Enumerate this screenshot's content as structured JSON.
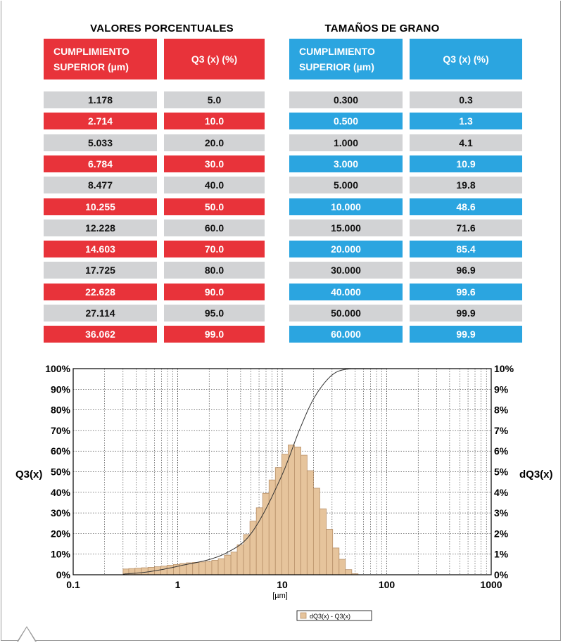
{
  "colors": {
    "red": "#e8333a",
    "blue": "#2ba5e0",
    "grey": "#d2d3d5",
    "bar_fill": "#e6c49c",
    "bar_stroke": "#b8916a"
  },
  "left_table": {
    "title": "VALORES PORCENTUALES",
    "col1_header": "CUMPLIMIENTO SUPERIOR (µm)",
    "col2_header": "Q3 (x) (%)",
    "rows": [
      {
        "a": "1.178",
        "b": "5.0"
      },
      {
        "a": "2.714",
        "b": "10.0"
      },
      {
        "a": "5.033",
        "b": "20.0"
      },
      {
        "a": "6.784",
        "b": "30.0"
      },
      {
        "a": "8.477",
        "b": "40.0"
      },
      {
        "a": "10.255",
        "b": "50.0"
      },
      {
        "a": "12.228",
        "b": "60.0"
      },
      {
        "a": "14.603",
        "b": "70.0"
      },
      {
        "a": "17.725",
        "b": "80.0"
      },
      {
        "a": "22.628",
        "b": "90.0"
      },
      {
        "a": "27.114",
        "b": "95.0"
      },
      {
        "a": "36.062",
        "b": "99.0"
      }
    ]
  },
  "right_table": {
    "title": "TAMAÑOS DE GRANO",
    "col1_header": "CUMPLIMIENTO SUPERIOR (µm)",
    "col2_header": "Q3 (x) (%)",
    "rows": [
      {
        "a": "0.300",
        "b": "0.3"
      },
      {
        "a": "0.500",
        "b": "1.3"
      },
      {
        "a": "1.000",
        "b": "4.1"
      },
      {
        "a": "3.000",
        "b": "10.9"
      },
      {
        "a": "5.000",
        "b": "19.8"
      },
      {
        "a": "10.000",
        "b": "48.6"
      },
      {
        "a": "15.000",
        "b": "71.6"
      },
      {
        "a": "20.000",
        "b": "85.4"
      },
      {
        "a": "30.000",
        "b": "96.9"
      },
      {
        "a": "40.000",
        "b": "99.6"
      },
      {
        "a": "50.000",
        "b": "99.9"
      },
      {
        "a": "60.000",
        "b": "99.9"
      }
    ]
  },
  "chart_data": {
    "type": "bar",
    "xscale": "log",
    "xlim": [
      0.1,
      1000
    ],
    "xticks": [
      0.1,
      1,
      10,
      100,
      1000
    ],
    "xtick_labels": [
      "0.1",
      "1",
      "10",
      "100",
      "1000"
    ],
    "xlabel": "[µm]",
    "ylabel_left": "Q3(x)",
    "ylabel_right": "dQ3(x)",
    "ylim_left": [
      0,
      100
    ],
    "ylim_right": [
      0,
      10
    ],
    "yticks_left": [
      "0%",
      "10%",
      "20%",
      "30%",
      "40%",
      "50%",
      "60%",
      "70%",
      "80%",
      "90%",
      "100%"
    ],
    "yticks_right": [
      "0%",
      "1%",
      "2%",
      "3%",
      "4%",
      "5%",
      "6%",
      "7%",
      "8%",
      "9%",
      "10%"
    ],
    "grid": true,
    "legend": {
      "label": "dQ3(x) - Q3(x)",
      "position": "bottom-center"
    },
    "histogram": {
      "name": "dQ3(x)",
      "bins": [
        [
          0.3,
          0.34,
          0.28
        ],
        [
          0.34,
          0.39,
          0.3
        ],
        [
          0.39,
          0.45,
          0.32
        ],
        [
          0.45,
          0.52,
          0.34
        ],
        [
          0.52,
          0.6,
          0.36
        ],
        [
          0.6,
          0.69,
          0.39
        ],
        [
          0.69,
          0.79,
          0.42
        ],
        [
          0.79,
          0.91,
          0.46
        ],
        [
          0.91,
          1.05,
          0.5
        ],
        [
          1.05,
          1.21,
          0.55
        ],
        [
          1.21,
          1.39,
          0.58
        ],
        [
          1.39,
          1.6,
          0.6
        ],
        [
          1.6,
          1.84,
          0.62
        ],
        [
          1.84,
          2.12,
          0.65
        ],
        [
          2.12,
          2.44,
          0.7
        ],
        [
          2.44,
          2.8,
          0.78
        ],
        [
          2.8,
          3.23,
          0.95
        ],
        [
          3.23,
          3.71,
          1.1
        ],
        [
          3.71,
          4.27,
          1.45
        ],
        [
          4.27,
          4.91,
          1.95
        ],
        [
          4.91,
          5.65,
          2.6
        ],
        [
          5.65,
          6.5,
          3.25
        ],
        [
          6.5,
          7.48,
          3.95
        ],
        [
          7.48,
          8.6,
          4.6
        ],
        [
          8.6,
          9.9,
          5.2
        ],
        [
          9.9,
          11.4,
          5.85
        ],
        [
          11.4,
          13.1,
          6.3
        ],
        [
          13.1,
          15.1,
          6.2
        ],
        [
          15.1,
          17.3,
          5.8
        ],
        [
          17.3,
          19.9,
          5.05
        ],
        [
          19.9,
          22.9,
          4.2
        ],
        [
          22.9,
          26.4,
          3.2
        ],
        [
          26.4,
          30.4,
          2.2
        ],
        [
          30.4,
          35.0,
          1.3
        ],
        [
          35.0,
          40.2,
          0.75
        ],
        [
          40.2,
          46.3,
          0.25
        ],
        [
          46.3,
          53.2,
          0.05
        ]
      ]
    },
    "cumulative": {
      "name": "Q3(x)",
      "x": [
        0.3,
        0.5,
        1,
        3,
        5,
        10,
        15,
        20,
        30,
        40,
        50,
        60
      ],
      "y": [
        0.3,
        1.3,
        4.1,
        10.9,
        19.8,
        48.6,
        71.6,
        85.4,
        96.9,
        99.6,
        99.9,
        99.9
      ]
    }
  }
}
